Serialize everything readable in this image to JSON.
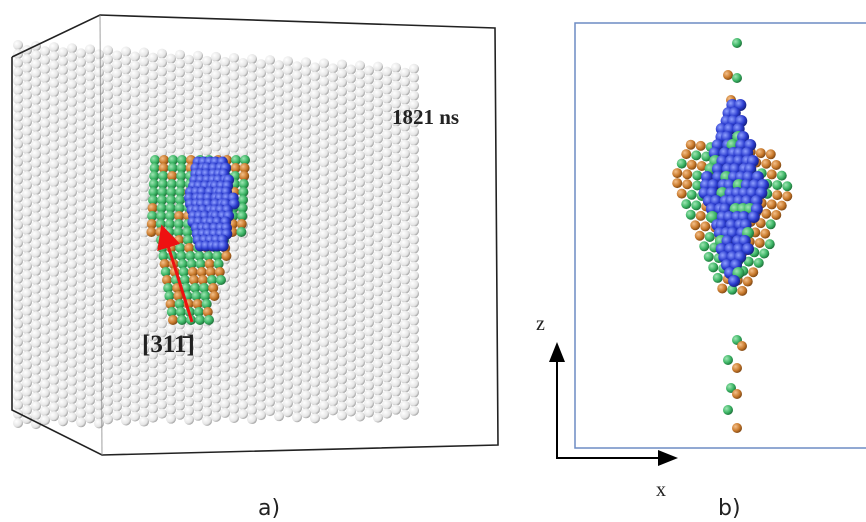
{
  "panel_a": {
    "time_label": "1821 ns",
    "direction_label": "[311̄]",
    "caption": "a)"
  },
  "panel_b": {
    "axis_z": "z",
    "axis_x": "x",
    "caption": "b)"
  }
}
